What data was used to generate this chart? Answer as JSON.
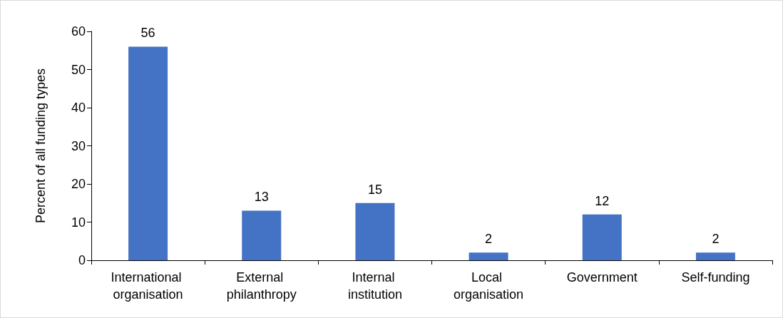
{
  "chart_data": {
    "type": "bar",
    "ylabel": "Percent of all funding types",
    "categories": [
      "International organisation",
      "External philanthropy",
      "Internal institution",
      "Local organisation",
      "Government",
      "Self-funding"
    ],
    "values": [
      56,
      13,
      15,
      2,
      12,
      2
    ],
    "color": "#4472c4",
    "ylim": [
      0,
      60
    ],
    "yticks": [
      0,
      10,
      20,
      30,
      40,
      50,
      60
    ],
    "grid": false,
    "data_labels": true
  }
}
